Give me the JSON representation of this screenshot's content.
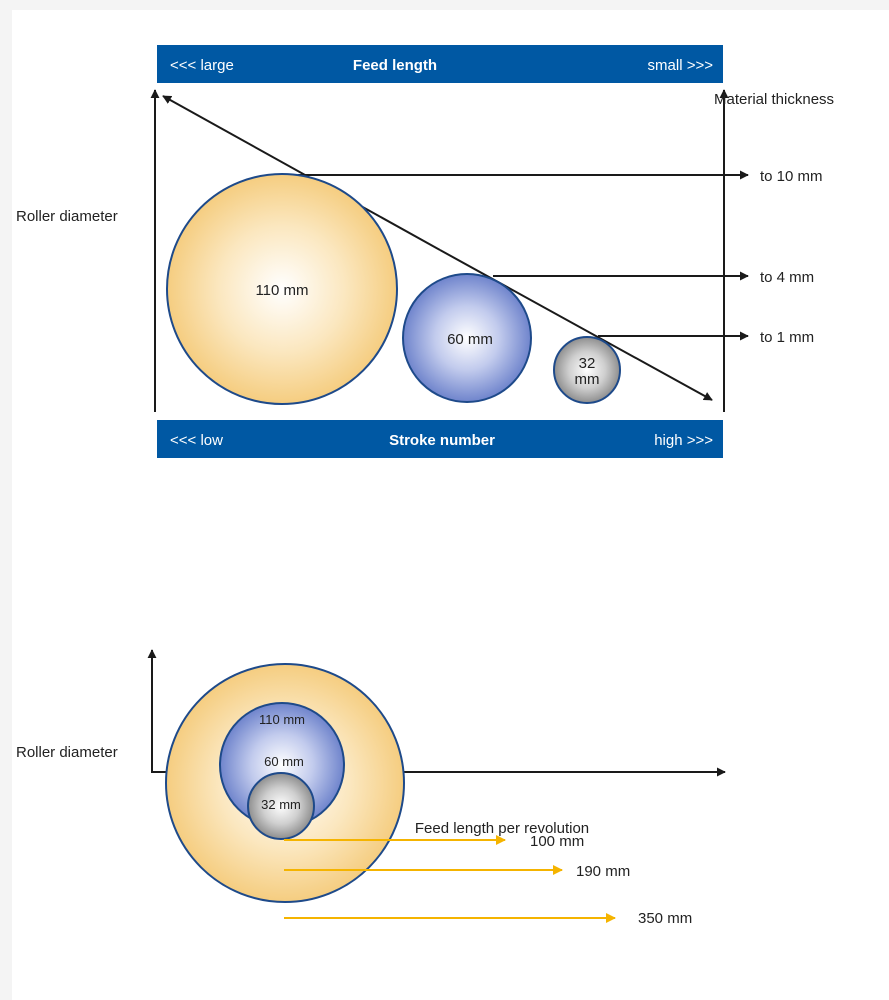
{
  "colors": {
    "bar": "#0058a3",
    "circle_stroke": "#1e4a8a",
    "arrow": "#1a1a1a",
    "feed_arrow": "#f5b400",
    "large_roller": "#f6d48c",
    "medium_roller": "#7b8fd0",
    "small_roller": "#9a9a9a"
  },
  "top_diagram": {
    "feed_bar": {
      "left": "<<< large",
      "title": "Feed length",
      "right": "small >>>"
    },
    "stroke_bar": {
      "left": "<<< low",
      "title": "Stroke number",
      "right": "high >>>"
    },
    "y_axis_label": "Roller diameter",
    "right_axis_label": "Material thickness",
    "rollers": [
      {
        "diameter": "110 mm",
        "thickness": "to 10 mm"
      },
      {
        "diameter": "60 mm",
        "thickness": "to 4 mm"
      },
      {
        "diameter_line1": "32",
        "diameter_line2": "mm",
        "thickness": "to 1 mm"
      }
    ]
  },
  "bottom_diagram": {
    "y_axis_label": "Roller diameter",
    "x_axis_label": "Feed length per revolution",
    "rollers": [
      {
        "diameter": "110 mm",
        "feed": "350 mm"
      },
      {
        "diameter": "60 mm",
        "feed": "190 mm"
      },
      {
        "diameter": "32 mm",
        "feed": "100 mm"
      }
    ]
  }
}
